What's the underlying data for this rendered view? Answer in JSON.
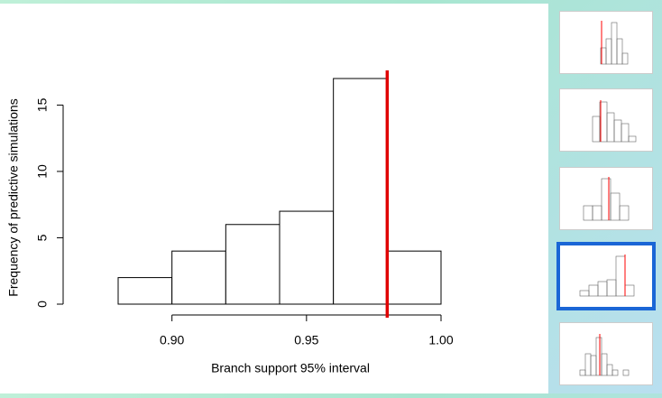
{
  "chart_data": {
    "type": "histogram",
    "bins": [
      0.88,
      0.9,
      0.92,
      0.94,
      0.96,
      0.98,
      1.0
    ],
    "values": [
      2,
      4,
      6,
      7,
      17,
      4
    ],
    "xlim": [
      0.88,
      1.0
    ],
    "xticks": [
      {
        "value": 0.9,
        "label": "0.90"
      },
      0.95,
      {
        "value": 1.0,
        "label": "1.00"
      }
    ],
    "ylim": [
      0,
      17
    ],
    "yticks": [
      0,
      5,
      10,
      15
    ],
    "xlabel": "Branch support 95% interval",
    "ylabel": "Frequency of predictive simulations",
    "vline": 0.98,
    "vline_color": "#e00000",
    "color": "#ffffff",
    "edge_color": "#000000"
  }
}
